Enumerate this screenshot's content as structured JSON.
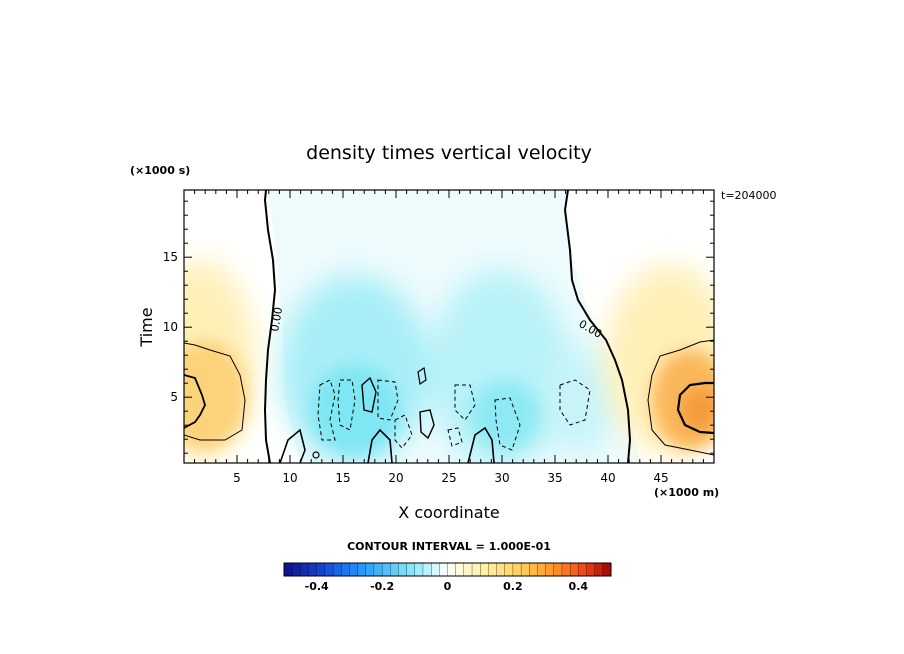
{
  "chart_data": {
    "type": "heatmap",
    "title": "density times vertical velocity",
    "xlabel": "X coordinate",
    "ylabel": "Time",
    "x_unit": "(×1000 m)",
    "y_unit": "(×1000 s)",
    "xlim": [
      0,
      50
    ],
    "ylim": [
      0.3,
      19.8
    ],
    "x_ticks": [
      5,
      10,
      15,
      20,
      25,
      30,
      35,
      40,
      45
    ],
    "y_ticks": [
      5,
      10,
      15
    ],
    "timestamp": "t=204000",
    "contour_interval": "CONTOUR INTERVAL = 1.000E-01",
    "contour_labels": [
      "0.00",
      "0.00"
    ],
    "colorbar": {
      "min": -0.5,
      "max": 0.5,
      "ticks": [
        -0.4,
        -0.2,
        0,
        0.2,
        0.4
      ],
      "tick_labels": [
        "-0.4",
        "-0.2",
        "0",
        "0.2",
        "0.4"
      ]
    },
    "features": [
      {
        "x": 2,
        "y": 5,
        "value": 0.2
      },
      {
        "x": 48,
        "y": 4,
        "value": 0.28
      },
      {
        "x": 17,
        "y": 5,
        "value": -0.15
      },
      {
        "x": 30,
        "y": 4,
        "value": -0.12
      },
      {
        "x": 37,
        "y": 5,
        "value": -0.12
      }
    ]
  }
}
